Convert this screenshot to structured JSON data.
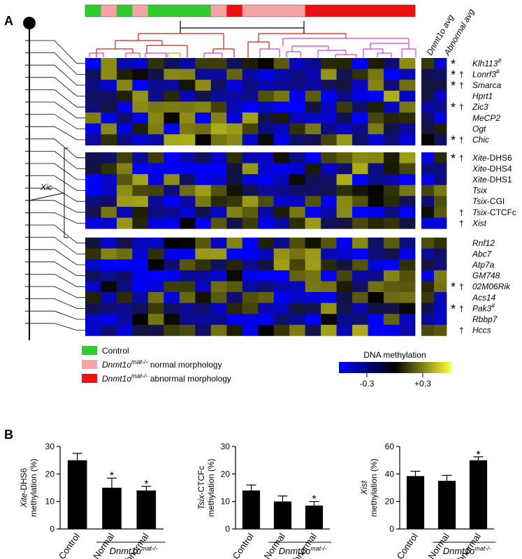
{
  "panels": {
    "a": "A",
    "b": "B"
  },
  "side_headers": [
    "Dnmt1o avg",
    "Abnormal avg"
  ],
  "xic_label": "Xic",
  "legend": {
    "items": [
      {
        "label": "Control",
        "suffix": "",
        "color": "#2ecc2e"
      },
      {
        "label": "Dnmt1o",
        "suffix": "normal morphology",
        "color": "#f5a3a3"
      },
      {
        "label": "Dnmt1o",
        "suffix": "abnormal morphology",
        "color": "#ee1111"
      }
    ],
    "superscript": "mat-/-",
    "colorbar_title": "DNA methylation",
    "colorbar_min": "-0.3",
    "colorbar_max": "+0.3"
  },
  "sample_groups": [
    "control",
    "normal",
    "control",
    "normal",
    "control",
    "control",
    "control",
    "control",
    "normal",
    "abnormal",
    "normal",
    "normal",
    "normal",
    "normal",
    "abnormal",
    "abnormal",
    "abnormal",
    "abnormal",
    "abnormal",
    "abnormal",
    "abnormal"
  ],
  "heatmap_groups": [
    {
      "rows": [
        {
          "gene": "Klh113",
          "italic_part": "Klh113",
          "rest": "",
          "hash": true,
          "star": true,
          "dagger": false
        },
        {
          "gene": "Lonrf3",
          "italic_part": "Lonrf3",
          "rest": "",
          "hash": true,
          "star": true,
          "dagger": true
        },
        {
          "gene": "Smarca",
          "italic_part": "Smarca",
          "rest": "",
          "hash": false,
          "star": true,
          "dagger": true
        },
        {
          "gene": "Hprt1",
          "italic_part": "Hprt1",
          "rest": "",
          "hash": false,
          "star": false,
          "dagger": false
        },
        {
          "gene": "Zic3",
          "italic_part": "Zic3",
          "rest": "",
          "hash": false,
          "star": true,
          "dagger": true
        },
        {
          "gene": "MeCP2",
          "italic_part": "MeCP2",
          "rest": "",
          "hash": false,
          "star": false,
          "dagger": false
        },
        {
          "gene": "Ogt",
          "italic_part": "Ogt",
          "rest": "",
          "hash": false,
          "star": false,
          "dagger": false
        },
        {
          "gene": "Chic",
          "italic_part": "Chic",
          "rest": "",
          "hash": false,
          "star": true,
          "dagger": true
        }
      ]
    },
    {
      "rows": [
        {
          "gene": "Xite-DHS6",
          "italic_part": "Xite",
          "rest": "-DHS6",
          "hash": false,
          "star": true,
          "dagger": true
        },
        {
          "gene": "Xite-DHS4",
          "italic_part": "Xite",
          "rest": "-DHS4",
          "hash": false,
          "star": false,
          "dagger": false
        },
        {
          "gene": "Xite-DHS1",
          "italic_part": "Xite",
          "rest": "-DHS1",
          "hash": false,
          "star": false,
          "dagger": false
        },
        {
          "gene": "Tsix",
          "italic_part": "Tsix",
          "rest": "",
          "hash": false,
          "star": false,
          "dagger": false
        },
        {
          "gene": "Tsix-CGI",
          "italic_part": "Tsix",
          "rest": "-CGI",
          "hash": false,
          "star": false,
          "dagger": false
        },
        {
          "gene": "Tsix-CTCFc",
          "italic_part": "Tsix",
          "rest": "-CTCFc",
          "hash": false,
          "star": false,
          "dagger": true
        },
        {
          "gene": "Xist",
          "italic_part": "Xist",
          "rest": "",
          "hash": false,
          "star": false,
          "dagger": true
        }
      ]
    },
    {
      "rows": [
        {
          "gene": "Rnf12",
          "italic_part": "Rnf12",
          "rest": "",
          "hash": false,
          "star": false,
          "dagger": false
        },
        {
          "gene": "Abc7",
          "italic_part": "Abc7",
          "rest": "",
          "hash": false,
          "star": false,
          "dagger": false
        },
        {
          "gene": "Atp7a",
          "italic_part": "Atp7a",
          "rest": "",
          "hash": false,
          "star": false,
          "dagger": false
        },
        {
          "gene": "GM748",
          "italic_part": "GM748",
          "rest": "",
          "hash": false,
          "star": false,
          "dagger": false
        },
        {
          "gene": "02M06Rik",
          "italic_part": "02M06Rik",
          "rest": "",
          "hash": false,
          "star": true,
          "dagger": true
        },
        {
          "gene": "Acs14",
          "italic_part": "Acs14",
          "rest": "",
          "hash": false,
          "star": false,
          "dagger": false
        },
        {
          "gene": "Pak3",
          "italic_part": "Pak3",
          "rest": "",
          "hash": true,
          "star": true,
          "dagger": true
        },
        {
          "gene": "Rbbp7",
          "italic_part": "Rbbp7",
          "rest": "",
          "hash": false,
          "star": false,
          "dagger": false
        },
        {
          "gene": "Hccs",
          "italic_part": "Hccs",
          "rest": "",
          "hash": false,
          "star": false,
          "dagger": true
        }
      ]
    }
  ],
  "group_label": "Dnmt1o",
  "group_label_sup": "mat-/-",
  "chart_data": [
    {
      "type": "bar",
      "categories": [
        "Control",
        "Normal",
        "Abnormal"
      ],
      "values": [
        25,
        15,
        14
      ],
      "errors": [
        2.5,
        3.5,
        1.5
      ],
      "significant": [
        false,
        true,
        true
      ],
      "ylabel_italic": "Xite",
      "ylabel_rest": "-DHS6",
      "ylabel_line2": "methylation (%)",
      "ylim": [
        0,
        30
      ],
      "yticks": [
        "0",
        "10",
        "20",
        "30"
      ]
    },
    {
      "type": "bar",
      "categories": [
        "Control",
        "Normal",
        "Abnormal"
      ],
      "values": [
        14,
        10,
        8.5
      ],
      "errors": [
        2,
        2,
        1.5
      ],
      "significant": [
        false,
        false,
        true
      ],
      "ylabel_italic": "Tsix",
      "ylabel_rest": "-CTCFc",
      "ylabel_line2": "methylation (%)",
      "ylim": [
        0,
        30
      ],
      "yticks": [
        "0",
        "10",
        "20",
        "30"
      ]
    },
    {
      "type": "bar",
      "categories": [
        "Control",
        "Normal",
        "Abnormal"
      ],
      "values": [
        38.5,
        35,
        50
      ],
      "errors": [
        3.5,
        4,
        2.5
      ],
      "significant": [
        false,
        false,
        true
      ],
      "ylabel_italic": "Xist",
      "ylabel_rest": "",
      "ylabel_line2": "methylation (%)",
      "ylim": [
        0,
        60
      ],
      "yticks": [
        "0",
        "20",
        "40",
        "60"
      ]
    }
  ]
}
